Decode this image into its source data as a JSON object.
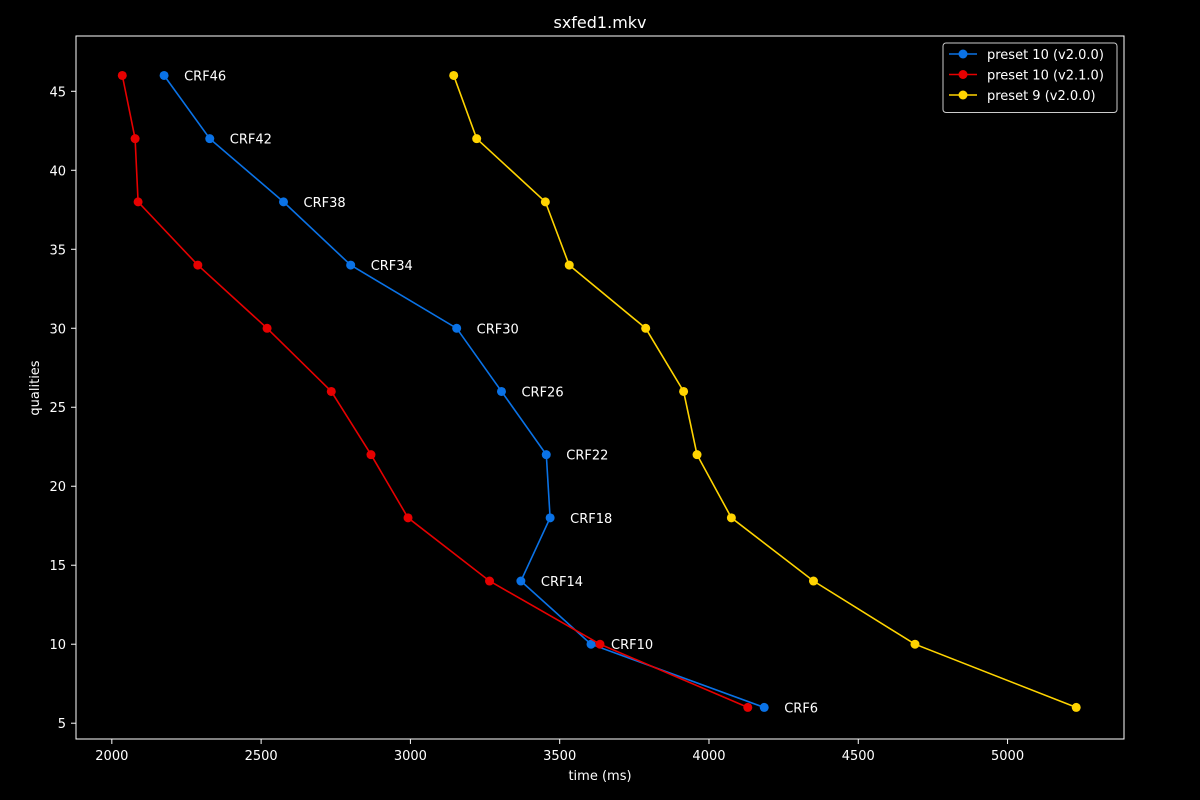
{
  "chart_data": {
    "type": "line",
    "title": "sxfed1.mkv",
    "xlabel": "time (ms)",
    "ylabel": "qualities",
    "xlim": [
      1880,
      5390
    ],
    "ylim": [
      4,
      48.5
    ],
    "xticks": [
      2000,
      2500,
      3000,
      3500,
      4000,
      4500,
      5000
    ],
    "yticks": [
      5,
      10,
      15,
      20,
      25,
      30,
      35,
      40,
      45
    ],
    "grid": false,
    "legend_position": "top-right",
    "series": [
      {
        "name": "preset 10 (v2.0.0)",
        "color": "#0a72e6",
        "points": [
          {
            "x": 2175,
            "y": 46,
            "label": "CRF46"
          },
          {
            "x": 2328,
            "y": 42,
            "label": "CRF42"
          },
          {
            "x": 2575,
            "y": 38,
            "label": "CRF38"
          },
          {
            "x": 2800,
            "y": 34,
            "label": "CRF34"
          },
          {
            "x": 3155,
            "y": 30,
            "label": "CRF30"
          },
          {
            "x": 3305,
            "y": 26,
            "label": "CRF26"
          },
          {
            "x": 3455,
            "y": 22,
            "label": "CRF22"
          },
          {
            "x": 3468,
            "y": 18,
            "label": "CRF18"
          },
          {
            "x": 3370,
            "y": 14,
            "label": "CRF14"
          },
          {
            "x": 3605,
            "y": 10,
            "label": "CRF10"
          },
          {
            "x": 4185,
            "y": 6,
            "label": "CRF6"
          }
        ]
      },
      {
        "name": "preset 10 (v2.1.0)",
        "color": "#e60000",
        "points": [
          {
            "x": 2035,
            "y": 46
          },
          {
            "x": 2078,
            "y": 42
          },
          {
            "x": 2088,
            "y": 38
          },
          {
            "x": 2288,
            "y": 34
          },
          {
            "x": 2520,
            "y": 30
          },
          {
            "x": 2735,
            "y": 26
          },
          {
            "x": 2868,
            "y": 22
          },
          {
            "x": 2992,
            "y": 18
          },
          {
            "x": 3265,
            "y": 14
          },
          {
            "x": 3635,
            "y": 10
          },
          {
            "x": 4130,
            "y": 6
          }
        ]
      },
      {
        "name": "preset 9 (v2.0.0)",
        "color": "#ffd400",
        "points": [
          {
            "x": 3145,
            "y": 46
          },
          {
            "x": 3222,
            "y": 42
          },
          {
            "x": 3452,
            "y": 38
          },
          {
            "x": 3532,
            "y": 34
          },
          {
            "x": 3788,
            "y": 30
          },
          {
            "x": 3915,
            "y": 26
          },
          {
            "x": 3960,
            "y": 22
          },
          {
            "x": 4075,
            "y": 18
          },
          {
            "x": 4350,
            "y": 14
          },
          {
            "x": 4690,
            "y": 10
          },
          {
            "x": 5230,
            "y": 6
          }
        ]
      }
    ]
  }
}
